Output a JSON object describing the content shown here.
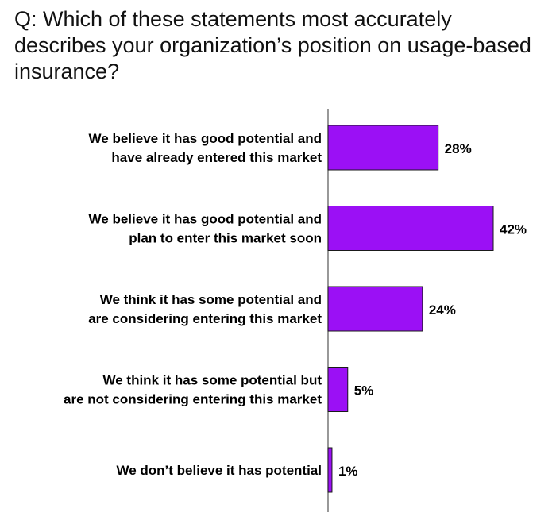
{
  "question": "Q: Which of these statements most accurately describes your organization’s position on usage-based insurance?",
  "colors": {
    "bar": "#9b10f5",
    "bar_border": "#1a1a1a",
    "axis": "#555555"
  },
  "chart_data": {
    "type": "bar",
    "orientation": "horizontal",
    "categories": [
      [
        "We believe it has good potential and",
        "have already entered this market"
      ],
      [
        "We believe it has good potential and",
        "plan to enter this market soon"
      ],
      [
        "We think it has some potential and",
        "are considering entering this market"
      ],
      [
        "We think it has some potential but",
        "are not considering entering this market"
      ],
      [
        "We don’t believe it has potential"
      ]
    ],
    "values": [
      28,
      42,
      24,
      5,
      1
    ],
    "value_labels": [
      "28%",
      "42%",
      "24%",
      "5%",
      "1%"
    ],
    "grid": false,
    "legend": "none"
  }
}
